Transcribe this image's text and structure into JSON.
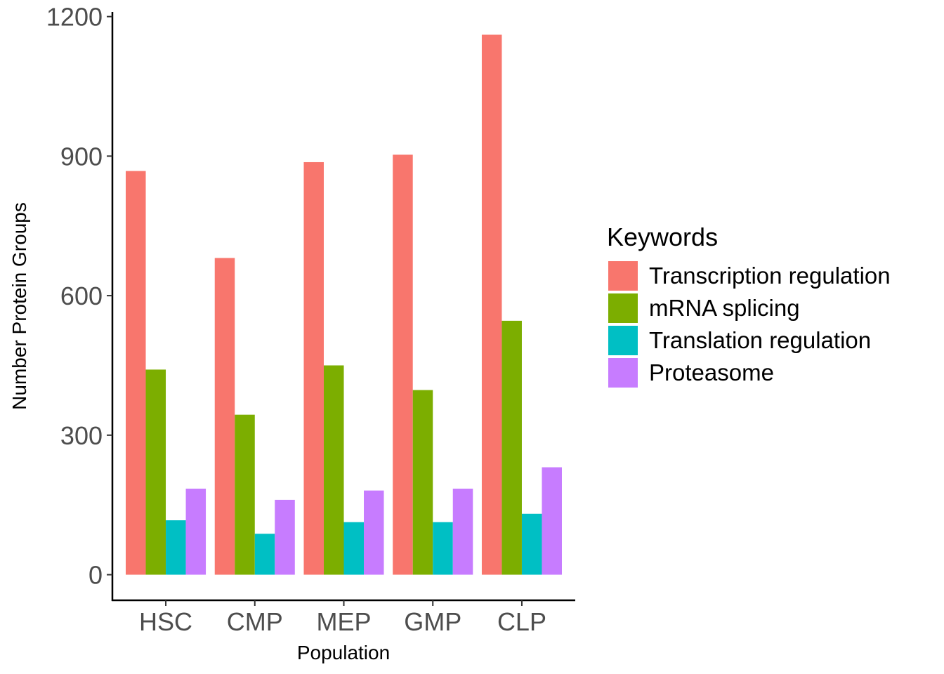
{
  "chart_data": {
    "type": "bar",
    "title": "",
    "xlabel": "Population",
    "ylabel": "Number Protein Groups",
    "categories": [
      "HSC",
      "CMP",
      "MEP",
      "GMP",
      "CLP"
    ],
    "series": [
      {
        "name": "Transcription regulation",
        "color": "#F8766D",
        "values": [
          868,
          681,
          887,
          903,
          1161
        ]
      },
      {
        "name": "mRNA splicing",
        "color": "#7CAE00",
        "values": [
          441,
          344,
          450,
          397,
          546
        ]
      },
      {
        "name": "Translation regulation",
        "color": "#00BFC4",
        "values": [
          117,
          88,
          113,
          113,
          131
        ]
      },
      {
        "name": "Proteasome",
        "color": "#C77CFF",
        "values": [
          185,
          161,
          181,
          185,
          231
        ]
      }
    ],
    "ylim": [
      -55,
      1210
    ],
    "yticks": [
      0,
      300,
      600,
      900,
      1200
    ],
    "legend": {
      "title": "Keywords",
      "position": "right"
    },
    "grid": false
  }
}
